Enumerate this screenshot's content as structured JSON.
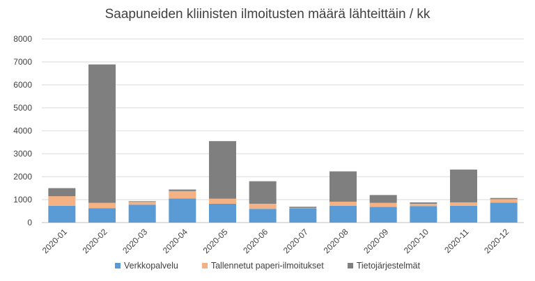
{
  "chart_data": {
    "type": "bar",
    "stacked": true,
    "title": "Saapuneiden kliinisten ilmoitusten määrä lähteittäin / kk",
    "xlabel": "",
    "ylabel": "",
    "ylim": [
      0,
      8000
    ],
    "yticks": [
      0,
      1000,
      2000,
      3000,
      4000,
      5000,
      6000,
      7000,
      8000
    ],
    "grid": true,
    "legend_position": "bottom",
    "categories": [
      "2020-01",
      "2020-02",
      "2020-03",
      "2020-04",
      "2020-05",
      "2020-06",
      "2020-07",
      "2020-08",
      "2020-09",
      "2020-10",
      "2020-11",
      "2020-12"
    ],
    "series": [
      {
        "name": "Verkkopalvelu",
        "color": "#5b9bd5",
        "values": [
          730,
          630,
          780,
          1050,
          820,
          600,
          620,
          730,
          680,
          720,
          730,
          870
        ]
      },
      {
        "name": "Tallennetut paperi-ilmoitukset",
        "color": "#f4b183",
        "values": [
          420,
          230,
          120,
          320,
          220,
          220,
          20,
          180,
          180,
          100,
          150,
          150
        ]
      },
      {
        "name": "Tietojärjestelmät",
        "color": "#7f7f7f",
        "values": [
          350,
          6030,
          30,
          70,
          2510,
          980,
          50,
          1320,
          340,
          60,
          1430,
          50
        ]
      }
    ]
  }
}
